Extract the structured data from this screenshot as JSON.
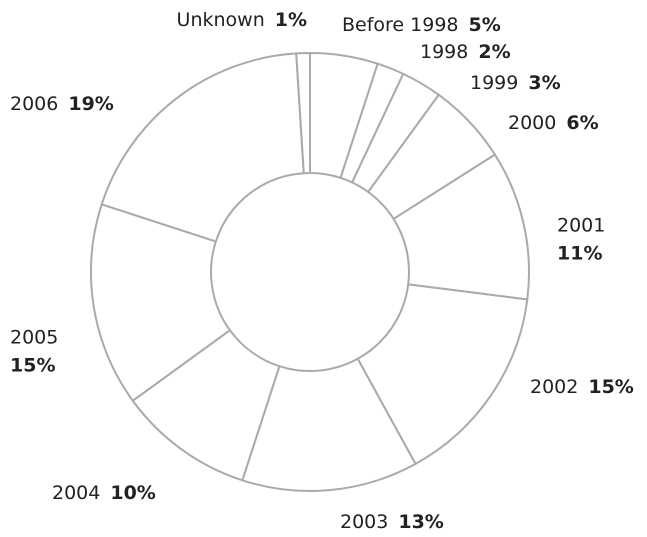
{
  "chart_data": {
    "type": "donut",
    "categories": [
      "Before 1998",
      "1998",
      "1999",
      "2000",
      "2001",
      "2002",
      "2003",
      "2004",
      "2005",
      "2006",
      "Unknown"
    ],
    "values": [
      5,
      2,
      3,
      6,
      11,
      15,
      13,
      10,
      15,
      19,
      1
    ],
    "value_labels": [
      "5%",
      "2%",
      "3%",
      "6%",
      "11%",
      "15%",
      "13%",
      "10%",
      "15%",
      "19%",
      "1%"
    ],
    "color": "#ffffff",
    "border_color": "#aaaaaa"
  }
}
